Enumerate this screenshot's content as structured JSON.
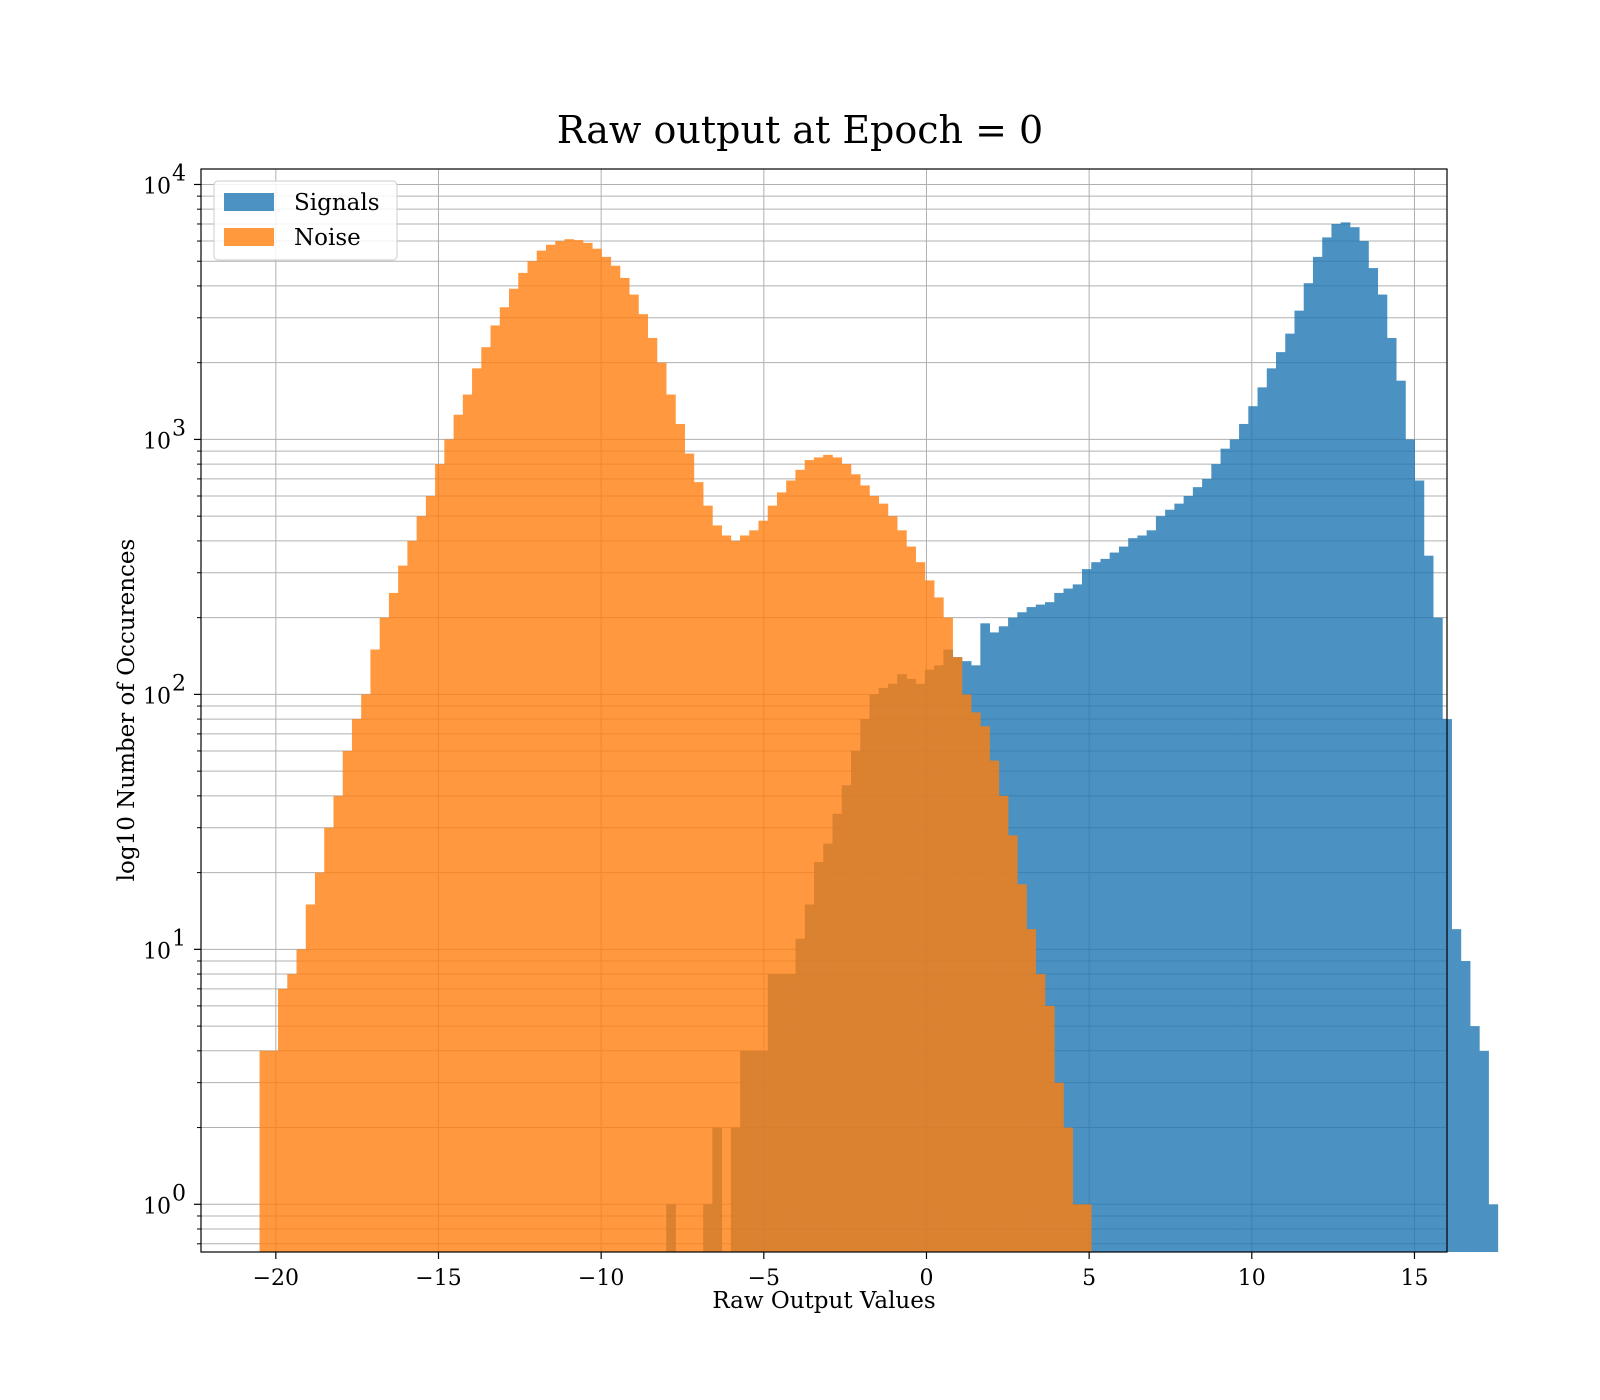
{
  "chart_data": {
    "type": "bar",
    "title": "Raw output at Epoch = 0",
    "xlabel": "Raw Output Values",
    "ylabel": "log10 Number of Occurences",
    "xlim": [
      -22.3,
      16.0
    ],
    "ylim": [
      0.65,
      11500
    ],
    "y_scale": "log",
    "grid": true,
    "legend_position": "top-left",
    "x_ticks": [
      -20,
      -15,
      -10,
      -5,
      0,
      5,
      10,
      15
    ],
    "x_tick_labels": [
      "−20",
      "−15",
      "−10",
      "−5",
      "0",
      "5",
      "10",
      "15"
    ],
    "y_ticks": [
      1,
      10,
      100,
      1000,
      10000
    ],
    "y_tick_labels": [
      "10",
      "10",
      "10",
      "10",
      "10"
    ],
    "y_tick_exponents": [
      "0",
      "1",
      "2",
      "3",
      "4"
    ],
    "series": [
      {
        "name": "Signals",
        "color": "#1f77b4",
        "bin_start": -8.0,
        "bin_width": 0.284,
        "values": [
          1,
          0,
          0,
          0,
          1,
          2,
          0,
          2,
          4,
          4,
          4,
          8,
          8,
          8,
          11,
          15,
          22,
          26,
          34,
          44,
          60,
          80,
          100,
          106,
          110,
          120,
          115,
          110,
          125,
          130,
          150,
          140,
          135,
          130,
          190,
          175,
          185,
          200,
          210,
          220,
          225,
          230,
          250,
          260,
          270,
          310,
          330,
          340,
          360,
          380,
          410,
          420,
          440,
          500,
          530,
          560,
          600,
          650,
          700,
          800,
          920,
          1000,
          1150,
          1350,
          1600,
          1900,
          2200,
          2600,
          3200,
          4100,
          5200,
          6200,
          7000,
          7100,
          6800,
          6000,
          4700,
          3700,
          2500,
          1700,
          1000,
          690,
          350,
          200,
          80,
          12,
          9,
          5,
          4,
          1
        ]
      },
      {
        "name": "Noise",
        "color": "#ff7f0e",
        "bin_start": -20.5,
        "bin_width": 0.284,
        "values": [
          4,
          4,
          7,
          8,
          10,
          15,
          20,
          30,
          40,
          60,
          80,
          100,
          150,
          200,
          250,
          320,
          400,
          500,
          600,
          800,
          1000,
          1250,
          1500,
          1900,
          2300,
          2800,
          3300,
          3900,
          4500,
          5000,
          5500,
          5800,
          6000,
          6100,
          6050,
          5900,
          5600,
          5200,
          4800,
          4300,
          3700,
          3100,
          2500,
          2000,
          1500,
          1150,
          880,
          680,
          550,
          460,
          420,
          400,
          420,
          440,
          480,
          550,
          620,
          690,
          760,
          830,
          850,
          870,
          850,
          800,
          730,
          660,
          600,
          560,
          500,
          440,
          380,
          330,
          280,
          240,
          200,
          140,
          100,
          85,
          75,
          55,
          40,
          28,
          18,
          12,
          8,
          6,
          3,
          2,
          1,
          1
        ]
      }
    ]
  }
}
